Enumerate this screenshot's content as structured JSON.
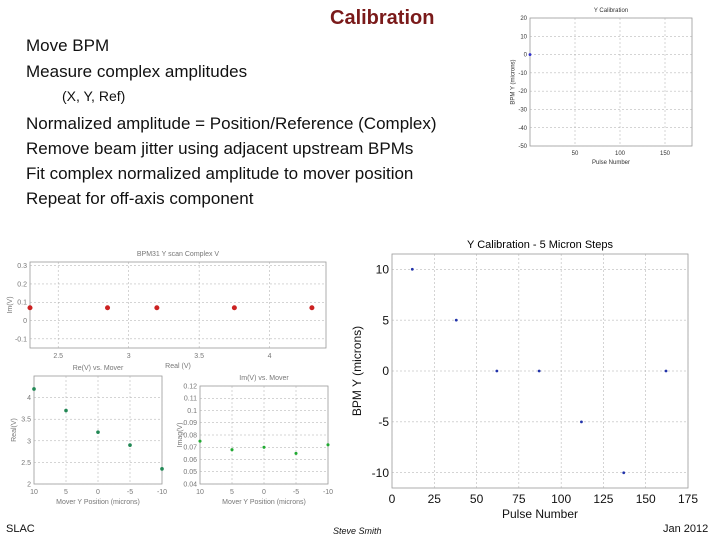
{
  "slide": {
    "title": "Calibration",
    "bullets": [
      "Move BPM",
      "Measure complex amplitudes",
      "(X, Y, Ref)",
      "Normalized amplitude = Position/Reference (Complex)",
      "Remove beam jitter using adjacent upstream BPMs",
      "Fit complex normalized amplitude to mover position",
      "Repeat for off-axis component"
    ],
    "footer": {
      "left": "SLAC",
      "center": "Steve Smith",
      "right": "Jan 2012"
    }
  },
  "chart_data": [
    {
      "id": "small-y-calibration",
      "type": "scatter",
      "title": "Y Calibration",
      "xlabel": "Pulse Number",
      "ylabel": "BPM Y (microns)",
      "xlim": [
        0,
        180
      ],
      "ylim": [
        -50,
        20
      ],
      "xticks": [
        50,
        100,
        150
      ],
      "yticks": [
        -50,
        -40,
        -30,
        -20,
        -10,
        0,
        10,
        20
      ],
      "grid": true,
      "series": [
        {
          "x": [
            0
          ],
          "y": [
            0
          ]
        }
      ]
    },
    {
      "id": "complex-scan",
      "type": "scatter",
      "title": "BPM31 Y scan Complex V",
      "xlabel": "Real (V)",
      "ylabel": "Im(V)",
      "xlim": [
        2.3,
        4.4
      ],
      "ylim": [
        -0.15,
        0.32
      ],
      "xticks": [
        2.5,
        3,
        3.5,
        4
      ],
      "yticks": [
        -0.1,
        0,
        0.1,
        0.2,
        0.3
      ],
      "grid": true,
      "series": [
        {
          "x": [
            2.3,
            2.85,
            3.2,
            3.75,
            4.3
          ],
          "y": [
            0.07,
            0.07,
            0.07,
            0.07,
            0.07
          ]
        }
      ]
    },
    {
      "id": "real-vs-mover",
      "type": "scatter",
      "title": "Re(V) vs. Mover",
      "xlabel": "Mover Y Position (microns)",
      "ylabel": "Real(V)",
      "xlim": [
        -10,
        10
      ],
      "ylim": [
        2,
        4.5
      ],
      "xticks": [
        10,
        5,
        0,
        -5,
        -10
      ],
      "yticks": [
        2,
        2.5,
        3,
        3.5,
        4
      ],
      "grid": true,
      "series": [
        {
          "x": [
            10,
            5,
            0,
            -5,
            -10
          ],
          "y": [
            4.2,
            3.7,
            3.2,
            2.9,
            2.35
          ]
        }
      ]
    },
    {
      "id": "imag-vs-mover",
      "type": "scatter",
      "title": "Im(V) vs. Mover",
      "xlabel": "Mover Y Position (microns)",
      "ylabel": "Imag(V)",
      "xlim": [
        -10,
        10
      ],
      "ylim": [
        0.04,
        0.12
      ],
      "xticks": [
        10,
        5,
        0,
        -5,
        -10
      ],
      "yticks": [
        0.04,
        0.05,
        0.06,
        0.07,
        0.08,
        0.09,
        0.1,
        0.11,
        0.12
      ],
      "grid": true,
      "series": [
        {
          "x": [
            10,
            5,
            0,
            -5,
            -10
          ],
          "y": [
            0.075,
            0.068,
            0.07,
            0.065,
            0.072
          ]
        }
      ]
    },
    {
      "id": "y-calibration-5-micron",
      "type": "scatter",
      "title": "Y Calibration - 5 Micron Steps",
      "xlabel": "Pulse Number",
      "ylabel": "BPM Y (microns)",
      "xlim": [
        0,
        175
      ],
      "ylim": [
        -11.5,
        11.5
      ],
      "xticks": [
        0,
        25,
        50,
        75,
        100,
        125,
        150,
        175
      ],
      "yticks": [
        10,
        5,
        0,
        -5,
        -10
      ],
      "grid": true,
      "series": [
        {
          "x": [
            12,
            38,
            62,
            87,
            112,
            137,
            162
          ],
          "y": [
            10,
            5,
            0,
            0,
            -5,
            -10,
            0
          ]
        }
      ]
    }
  ]
}
